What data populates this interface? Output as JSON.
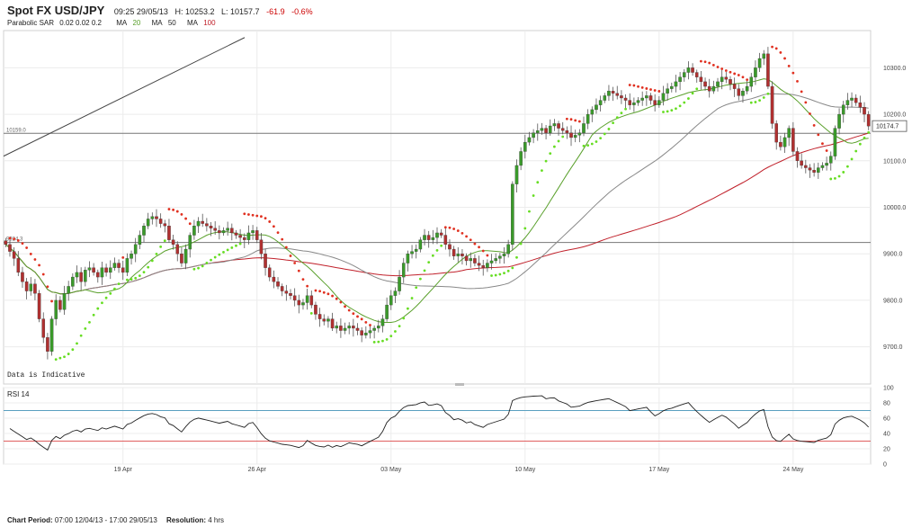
{
  "header": {
    "title": "Spot FX USD/JPY",
    "timestamp": "09:25 29/05/13",
    "high": "H: 10253.2",
    "low": "L: 10157.7",
    "change": "-61.9",
    "change_pct": "-0.6%",
    "change_color": "#cc0000"
  },
  "indicators": {
    "psar_label": "Parabolic SAR",
    "psar_params": "0.02  0.02  0.2",
    "ma_label": "MA",
    "ma20": "20",
    "ma50": "50",
    "ma100": "100",
    "ma20_color": "#5aa02c",
    "ma50_color": "#888888",
    "ma100_color": "#c0202a"
  },
  "annotations": {
    "data_note": "Data is Indicative",
    "level_upper": "10159.0",
    "level_lower": "9924.3",
    "last_price": "10174.7"
  },
  "footer": {
    "period_label": "Chart Period:",
    "period_value": "07:00 12/04/13 - 17:00 29/05/13",
    "resolution_label": "Resolution:",
    "resolution_value": "4 hrs"
  },
  "chart_data": [
    {
      "type": "candlestick",
      "title": "Spot FX USD/JPY",
      "ylim": [
        9620,
        10380
      ],
      "y_ticks": [
        "9700.0",
        "9800.0",
        "9900.0",
        "10000.0",
        "10100.0",
        "10200.0",
        "10300.0"
      ],
      "y_tick_values": [
        9700,
        9800,
        9900,
        10000,
        10100,
        10200,
        10300
      ],
      "x_ticks": [
        "19 Apr",
        "26 Apr",
        "03 May",
        "10 May",
        "17 May",
        "24 May"
      ],
      "x_tick_index": [
        28,
        60,
        92,
        124,
        156,
        188
      ],
      "horizontal_levels": [
        10159.0,
        9924.3
      ],
      "last_price": 10174.7,
      "grid": true,
      "close": [
        9920,
        9905,
        9890,
        9860,
        9840,
        9820,
        9835,
        9815,
        9760,
        9720,
        9690,
        9760,
        9800,
        9780,
        9815,
        9830,
        9850,
        9860,
        9840,
        9865,
        9870,
        9860,
        9850,
        9870,
        9860,
        9870,
        9880,
        9870,
        9860,
        9890,
        9900,
        9920,
        9940,
        9960,
        9975,
        9980,
        9975,
        9965,
        9960,
        9930,
        9920,
        9900,
        9880,
        9910,
        9940,
        9960,
        9970,
        9965,
        9960,
        9955,
        9950,
        9945,
        9950,
        9955,
        9945,
        9940,
        9935,
        9930,
        9945,
        9950,
        9930,
        9900,
        9870,
        9850,
        9840,
        9830,
        9820,
        9815,
        9810,
        9800,
        9790,
        9795,
        9810,
        9790,
        9770,
        9760,
        9755,
        9760,
        9740,
        9745,
        9735,
        9740,
        9745,
        9740,
        9735,
        9725,
        9730,
        9735,
        9740,
        9745,
        9760,
        9790,
        9810,
        9820,
        9850,
        9880,
        9900,
        9905,
        9910,
        9930,
        9940,
        9930,
        9935,
        9945,
        9940,
        9920,
        9910,
        9895,
        9900,
        9895,
        9885,
        9890,
        9880,
        9875,
        9870,
        9880,
        9885,
        9890,
        9895,
        9900,
        9920,
        10050,
        10090,
        10120,
        10140,
        10150,
        10160,
        10165,
        10170,
        10160,
        10175,
        10180,
        10170,
        10165,
        10160,
        10150,
        10155,
        10160,
        10180,
        10200,
        10210,
        10220,
        10230,
        10240,
        10250,
        10245,
        10240,
        10235,
        10230,
        10220,
        10225,
        10230,
        10235,
        10240,
        10230,
        10220,
        10230,
        10245,
        10255,
        10260,
        10270,
        10280,
        10290,
        10300,
        10290,
        10280,
        10270,
        10260,
        10250,
        10260,
        10270,
        10280,
        10275,
        10265,
        10255,
        10240,
        10250,
        10260,
        10280,
        10300,
        10320,
        10330,
        10260,
        10180,
        10140,
        10130,
        10150,
        10170,
        10120,
        10100,
        10090,
        10085,
        10080,
        10075,
        10085,
        10090,
        10095,
        10110,
        10170,
        10200,
        10220,
        10230,
        10235,
        10225,
        10215,
        10200,
        10174.7
      ]
    },
    {
      "type": "line",
      "title": "RSI 14",
      "ylim": [
        0,
        100
      ],
      "y_ticks": [
        "0",
        "20",
        "40",
        "60",
        "80",
        "100"
      ],
      "y_tick_values": [
        0,
        20,
        40,
        60,
        80,
        100
      ],
      "reference_levels": [
        70,
        30
      ],
      "grid": true
    }
  ]
}
